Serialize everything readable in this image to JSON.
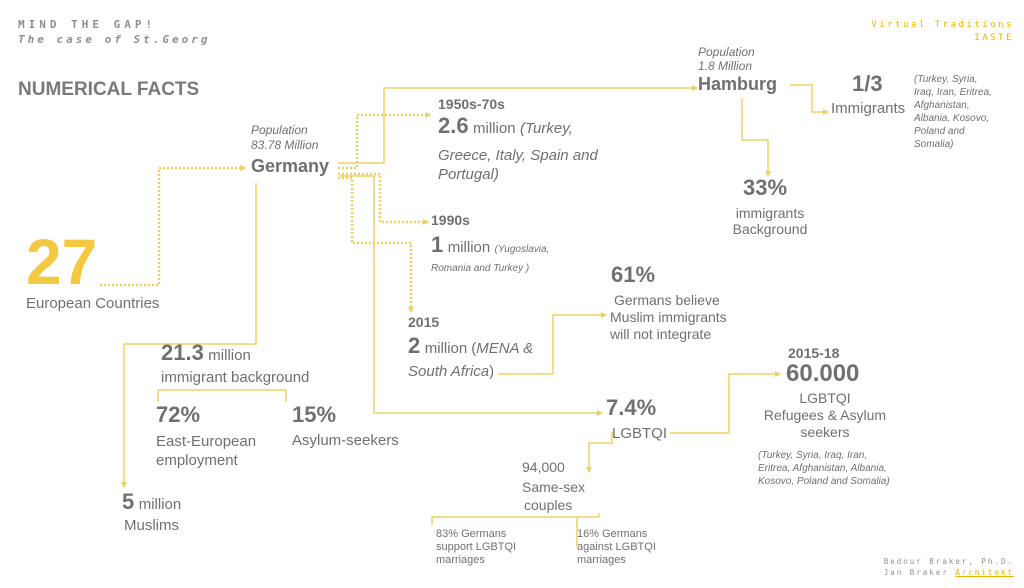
{
  "header": {
    "line1": "MIND THE GAP!",
    "line2": "The case of St.Georg",
    "right1": "Virtual Traditions",
    "right2": "IASTE"
  },
  "title": "NUMERICAL FACTS",
  "colors": {
    "accent": "#f5c842",
    "text": "#707070",
    "line": "#f0d060"
  },
  "eu": {
    "value": "27",
    "label": "European Countries"
  },
  "germany": {
    "pop_label": "Population",
    "pop_value": "83.78 Million",
    "name": "Germany"
  },
  "hamburg": {
    "pop_label": "Population",
    "pop_value": "1.8 Million",
    "name": "Hamburg"
  },
  "immigrants_third": {
    "value": "1/3",
    "label": "Immigrants",
    "origins": [
      "(Turkey, Syria,",
      "Iraq, Iran, Eritrea,",
      "Afghanistan,",
      "Albania, Kosovo,",
      "Poland and",
      "Somalia)"
    ]
  },
  "hamburg_background": {
    "value": "33%",
    "label1": "immigrants",
    "label2": "Background"
  },
  "wave_1950": {
    "period": "1950s-70s",
    "value": "2.6",
    "unit": "million",
    "origins_line1": "(Turkey,",
    "origins_line2": "Greece, Italy, Spain and",
    "origins_line3": "Portugal)"
  },
  "wave_1990": {
    "period": "1990s",
    "value": "1",
    "unit": "million",
    "origins_line1": "(Yugoslavia,",
    "origins_line2": "Romania and Turkey )"
  },
  "wave_2015": {
    "period": "2015",
    "value": "2",
    "unit": "million",
    "origins_pre": "(",
    "origins_it": "MENA &",
    "origins_line2": "South Africa",
    "origins_post": ")"
  },
  "belief": {
    "value": "61%",
    "line1": "Germans believe",
    "line2": "Muslim immigrants",
    "line3": "will not integrate"
  },
  "background": {
    "value": "21.3",
    "unit": "million",
    "label": "immigrant background",
    "east_value": "72%",
    "east_line1": "East-European",
    "east_line2": "employment",
    "asylum_value": "15%",
    "asylum_label": "Asylum-seekers"
  },
  "muslims": {
    "value": "5",
    "unit": "million",
    "label": "Muslims"
  },
  "lgbtqi": {
    "value": "7.4%",
    "label": "LGBTQI"
  },
  "couples": {
    "value": "94,000",
    "line1": "Same-sex",
    "line2": "couples"
  },
  "support": {
    "line1": "83% Germans",
    "line2": "support LGBTQI",
    "line3": "marriages"
  },
  "against": {
    "line1": "16% Germans",
    "line2": "against LGBTQI",
    "line3": "marriages"
  },
  "refugees": {
    "period": "2015-18",
    "value": "60.000",
    "line1": "LGBTQI",
    "line2": "Refugees & Asylum",
    "line3": "seekers",
    "origins": [
      "(Turkey, Syria, Iraq, Iran,",
      "Eritrea, Afghanistan, Albania,",
      "Kosovo, Poland and Somalia)"
    ]
  },
  "footer": {
    "line1": "Bedour Braker, Ph.D.",
    "line2_a": "Jan Braker",
    "line2_b": "Architekt"
  }
}
